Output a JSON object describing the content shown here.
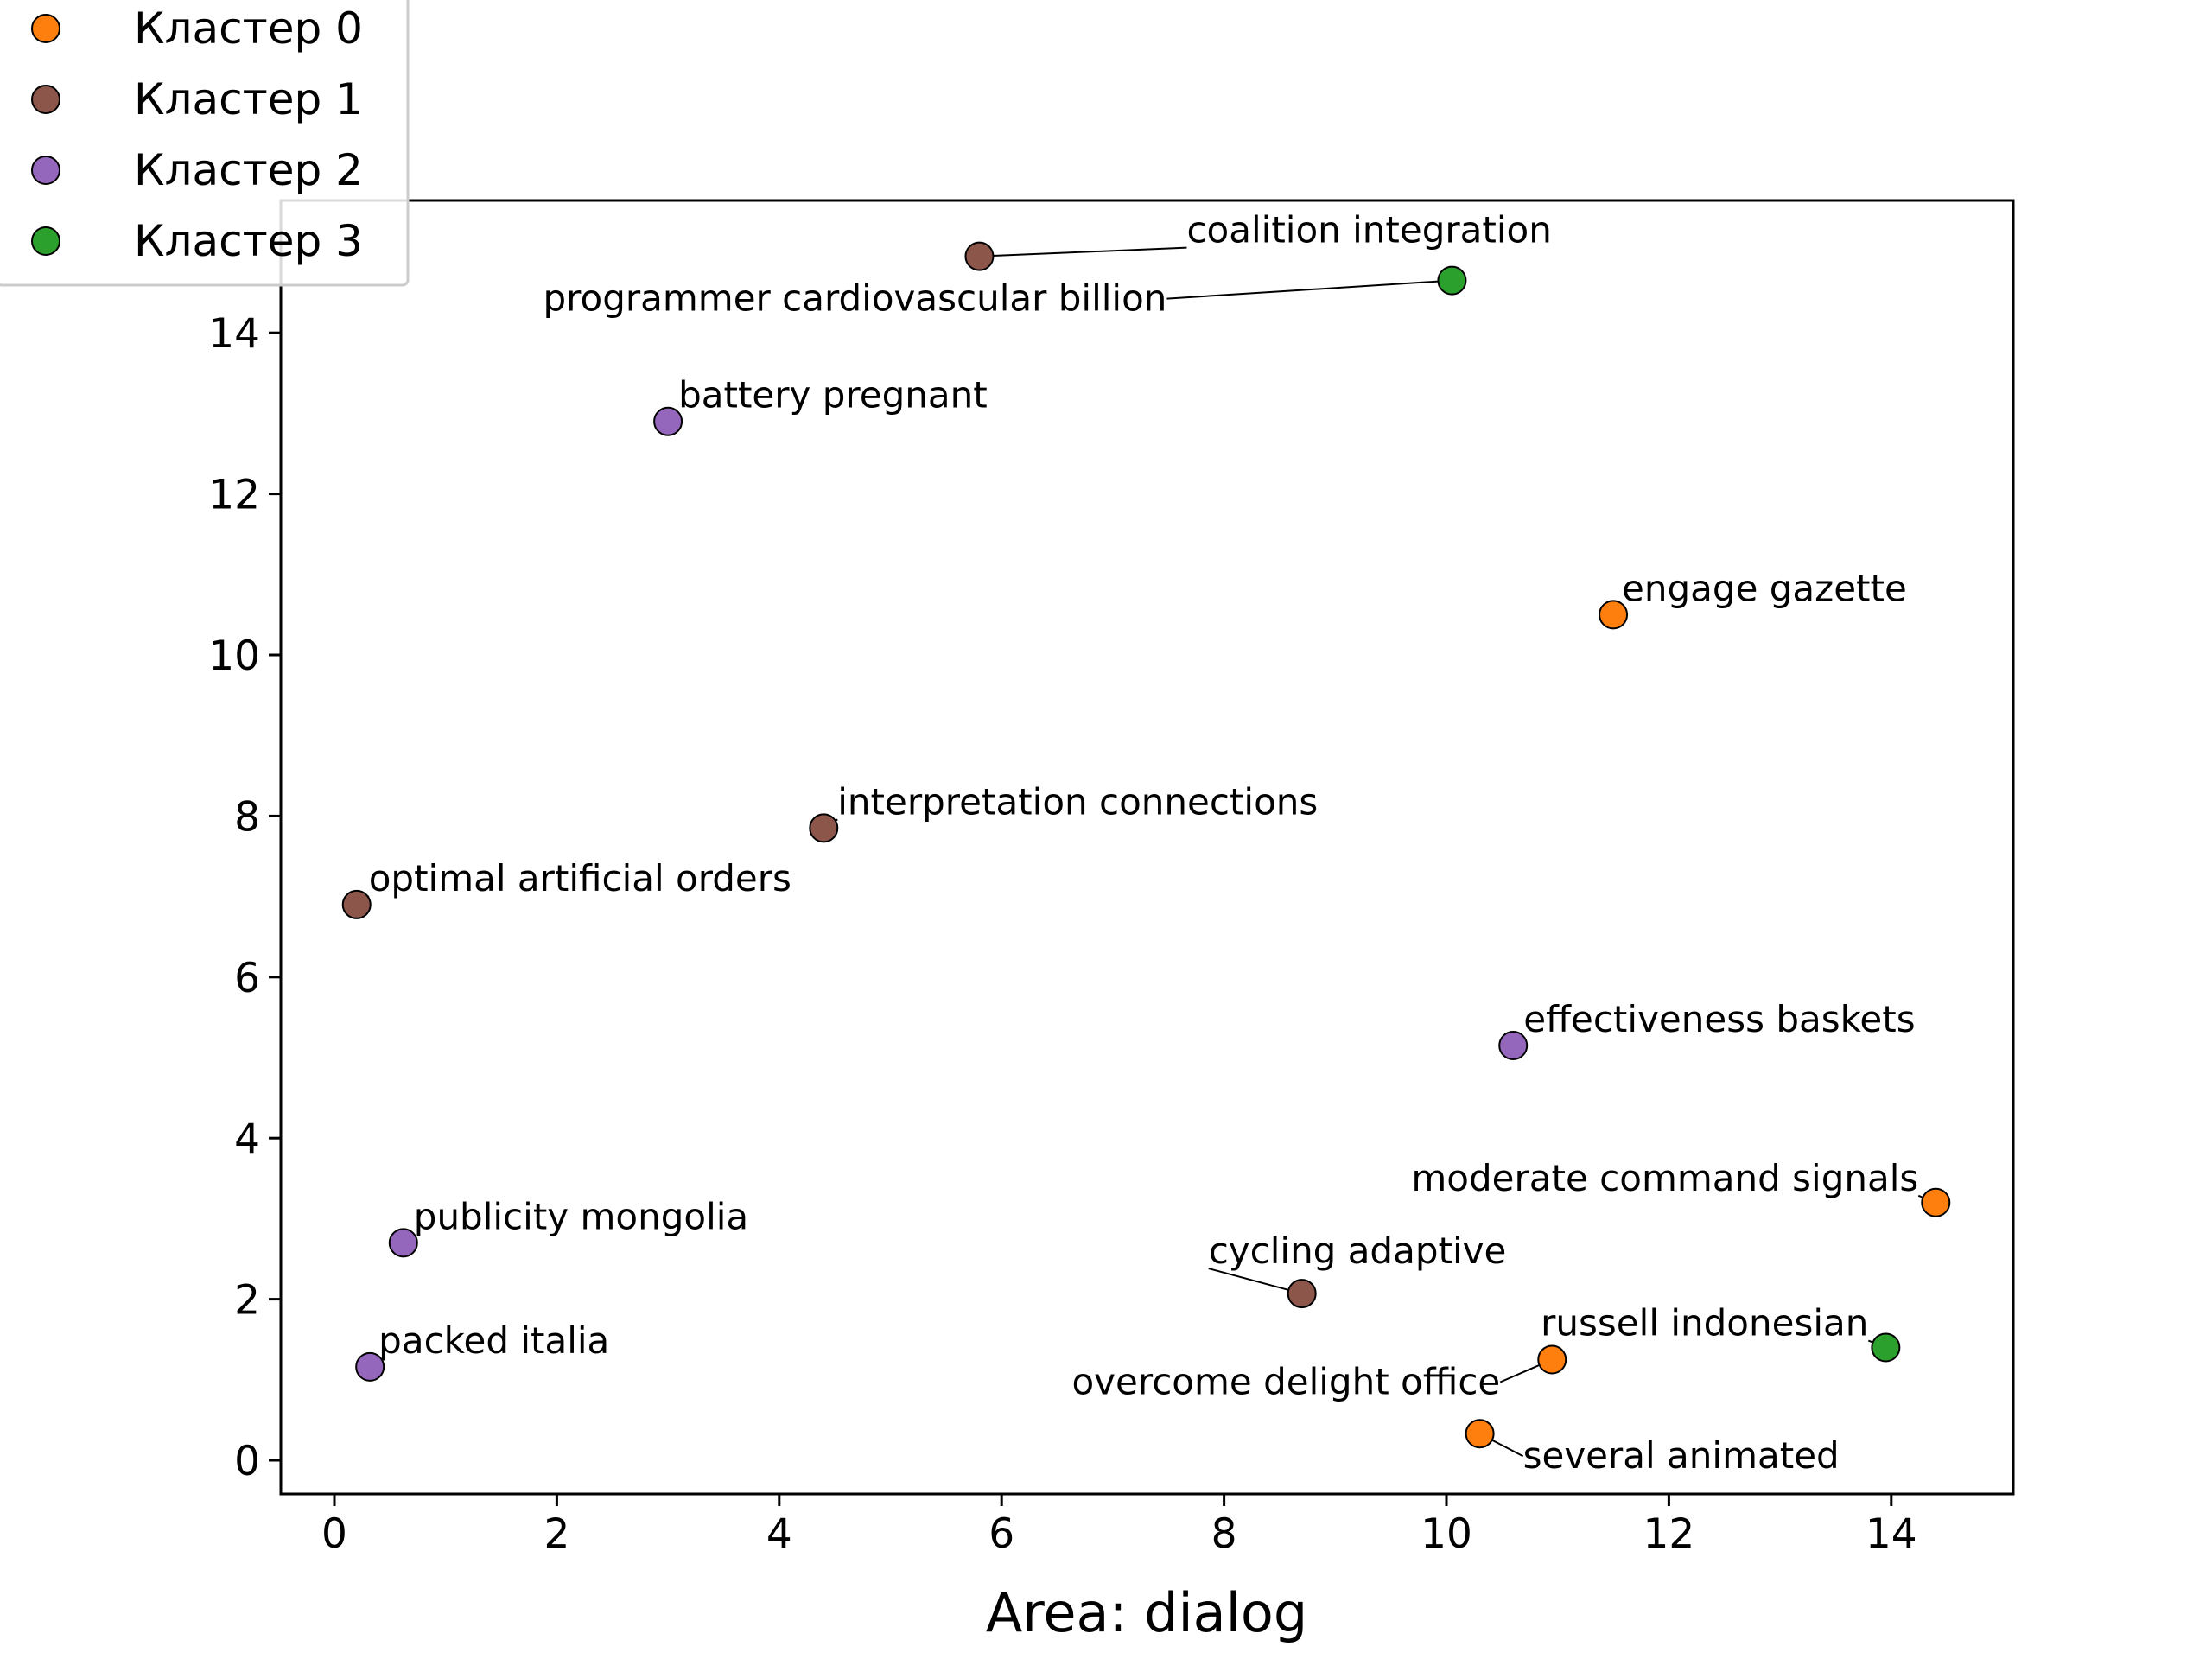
{
  "chart_data": {
    "type": "scatter",
    "title": "",
    "xlabel": "Area: dialog",
    "ylabel": "",
    "xlim": [
      -0.5,
      15.1
    ],
    "ylim": [
      -0.4,
      15.6
    ],
    "xticks": [
      0,
      2,
      4,
      6,
      8,
      10,
      12,
      14
    ],
    "yticks": [
      0,
      2,
      4,
      6,
      8,
      10,
      12,
      14
    ],
    "grid": false,
    "legend_placement": "top-left",
    "series": [
      {
        "name": "Кластер 0",
        "color": "#ff7f0e",
        "points": [
          {
            "x": 11.5,
            "y": 10.5,
            "label": "engage gazette"
          },
          {
            "x": 14.4,
            "y": 3.2,
            "label": "moderate command signals"
          },
          {
            "x": 10.95,
            "y": 1.25,
            "label": "overcome delight office"
          },
          {
            "x": 10.3,
            "y": 0.33,
            "label": "several animated"
          }
        ]
      },
      {
        "name": "Кластер 1",
        "color": "#8c564b",
        "points": [
          {
            "x": 5.8,
            "y": 14.95,
            "label": "coalition integration"
          },
          {
            "x": 4.4,
            "y": 7.85,
            "label": "interpretation connections"
          },
          {
            "x": 0.2,
            "y": 6.9,
            "label": "optimal artificial orders"
          },
          {
            "x": 8.7,
            "y": 2.07,
            "label": "cycling adaptive"
          }
        ]
      },
      {
        "name": "Кластер 2",
        "color": "#9467bd",
        "points": [
          {
            "x": 3.0,
            "y": 12.9,
            "label": "battery pregnant"
          },
          {
            "x": 10.6,
            "y": 5.15,
            "label": "effectiveness baskets"
          },
          {
            "x": 0.62,
            "y": 2.7,
            "label": "publicity mongolia"
          },
          {
            "x": 0.32,
            "y": 1.16,
            "label": "packed italia"
          }
        ]
      },
      {
        "name": "Кластер 3",
        "color": "#2ca02c",
        "points": [
          {
            "x": 10.05,
            "y": 14.65,
            "label": "programmer cardiovascular billion"
          },
          {
            "x": 13.95,
            "y": 1.4,
            "label": "russell indonesian"
          }
        ]
      }
    ]
  }
}
